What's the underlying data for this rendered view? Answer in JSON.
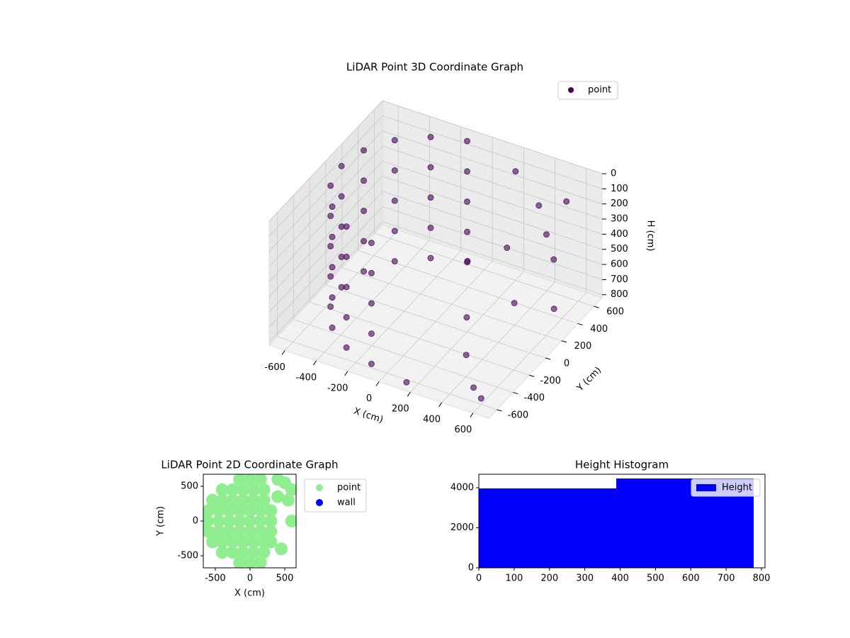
{
  "chart_data": [
    {
      "type": "scatter3d",
      "title": "LiDAR Point 3D Coordinate Graph",
      "xlabel": "X (cm)",
      "ylabel": "Y (cm)",
      "zlabel": "H (cm)",
      "xlim": [
        -700,
        700
      ],
      "ylim": [
        -700,
        700
      ],
      "zlim": [
        820,
        0
      ],
      "xticks": [
        -600,
        -400,
        -200,
        0,
        200,
        400,
        600
      ],
      "yticks": [
        -600,
        -400,
        -200,
        0,
        200,
        400,
        600
      ],
      "zticks": [
        0,
        100,
        200,
        300,
        400,
        500,
        600,
        700,
        800
      ],
      "grid": true,
      "legend": "upper right",
      "series": [
        {
          "name": "point",
          "color": "#440154",
          "x": [
            -104,
            -300,
            -460,
            -564,
            -600,
            -564,
            -460,
            -300,
            -104,
            -104,
            -300,
            -460,
            -564,
            -600,
            -564,
            -460,
            -300,
            -104,
            -104,
            -300,
            -460,
            -564,
            -600,
            -564,
            -460,
            -300,
            -104,
            -104,
            -300,
            -460,
            -564,
            -600,
            -564,
            -460,
            -300,
            -104,
            -104,
            -300,
            -460,
            -564,
            -600,
            -564,
            -460,
            -300,
            -104,
            200,
            400,
            500,
            300,
            100,
            450,
            600,
            250,
            350,
            500,
            150,
            600,
            650,
            550
          ],
          "y": [
            591,
            520,
            386,
            205,
            0,
            -205,
            -386,
            -520,
            -591,
            591,
            520,
            386,
            205,
            0,
            -205,
            -386,
            -520,
            -591,
            591,
            520,
            386,
            205,
            0,
            -205,
            -386,
            -520,
            -591,
            591,
            520,
            386,
            205,
            0,
            -205,
            -386,
            -520,
            -591,
            591,
            520,
            386,
            205,
            0,
            -205,
            -386,
            -520,
            -591,
            600,
            500,
            400,
            300,
            200,
            100,
            300,
            -100,
            -300,
            -500,
            -650,
            -600,
            200,
            550
          ],
          "h": [
            0,
            0,
            0,
            0,
            0,
            0,
            0,
            0,
            0,
            200,
            200,
            200,
            200,
            200,
            200,
            200,
            200,
            200,
            400,
            400,
            400,
            400,
            400,
            400,
            400,
            400,
            400,
            600,
            600,
            600,
            600,
            600,
            600,
            600,
            600,
            600,
            800,
            800,
            800,
            800,
            800,
            800,
            800,
            800,
            800,
            100,
            200,
            300,
            400,
            500,
            600,
            700,
            650,
            750,
            800,
            800,
            780,
            300,
            150
          ]
        }
      ]
    },
    {
      "type": "scatter",
      "title": "LiDAR Point 2D Coordinate Graph",
      "xlabel": "X (cm)",
      "ylabel": "Y (cm)",
      "xlim": [
        -673,
        663
      ],
      "ylim": [
        -673,
        673
      ],
      "xticks": [
        -500,
        0,
        500
      ],
      "yticks": [
        -500,
        0,
        500
      ],
      "legend": "outside right",
      "series": [
        {
          "name": "point",
          "color": "#90ee90",
          "x": [
            -150,
            0,
            150,
            -400,
            -250,
            -100,
            50,
            200,
            -540,
            -400,
            -250,
            -100,
            50,
            200,
            -600,
            -450,
            -300,
            -150,
            0,
            150,
            300,
            -620,
            -450,
            -300,
            -150,
            0,
            150,
            300,
            -600,
            -450,
            -300,
            -150,
            0,
            150,
            300,
            -540,
            -400,
            -250,
            -100,
            50,
            200,
            -400,
            -250,
            -100,
            50,
            200,
            -150,
            0,
            150,
            400,
            500,
            600,
            400,
            550,
            300,
            450,
            600
          ],
          "y": [
            600,
            600,
            600,
            450,
            450,
            450,
            450,
            450,
            300,
            300,
            300,
            300,
            300,
            300,
            150,
            150,
            150,
            150,
            150,
            150,
            150,
            0,
            0,
            0,
            0,
            0,
            0,
            0,
            -150,
            -150,
            -150,
            -150,
            -150,
            -150,
            -150,
            -300,
            -300,
            -300,
            -300,
            -300,
            -300,
            -450,
            -450,
            -450,
            -450,
            -450,
            -600,
            -600,
            -600,
            600,
            550,
            450,
            350,
            300,
            -300,
            -400,
            0
          ]
        },
        {
          "name": "wall",
          "color": "#0000ff",
          "x": [],
          "y": []
        }
      ]
    },
    {
      "type": "histogram",
      "title": "Height Histogram",
      "bins": [
        0,
        389,
        778
      ],
      "xlim": [
        0,
        810
      ],
      "ylim": [
        0,
        4673
      ],
      "xticks": [
        0,
        100,
        200,
        300,
        400,
        500,
        600,
        700,
        800
      ],
      "yticks": [
        0,
        2000,
        4000
      ],
      "legend": "upper right",
      "series": [
        {
          "name": "Height",
          "color": "#0000ff",
          "values": [
            3965,
            4460
          ]
        }
      ]
    }
  ]
}
